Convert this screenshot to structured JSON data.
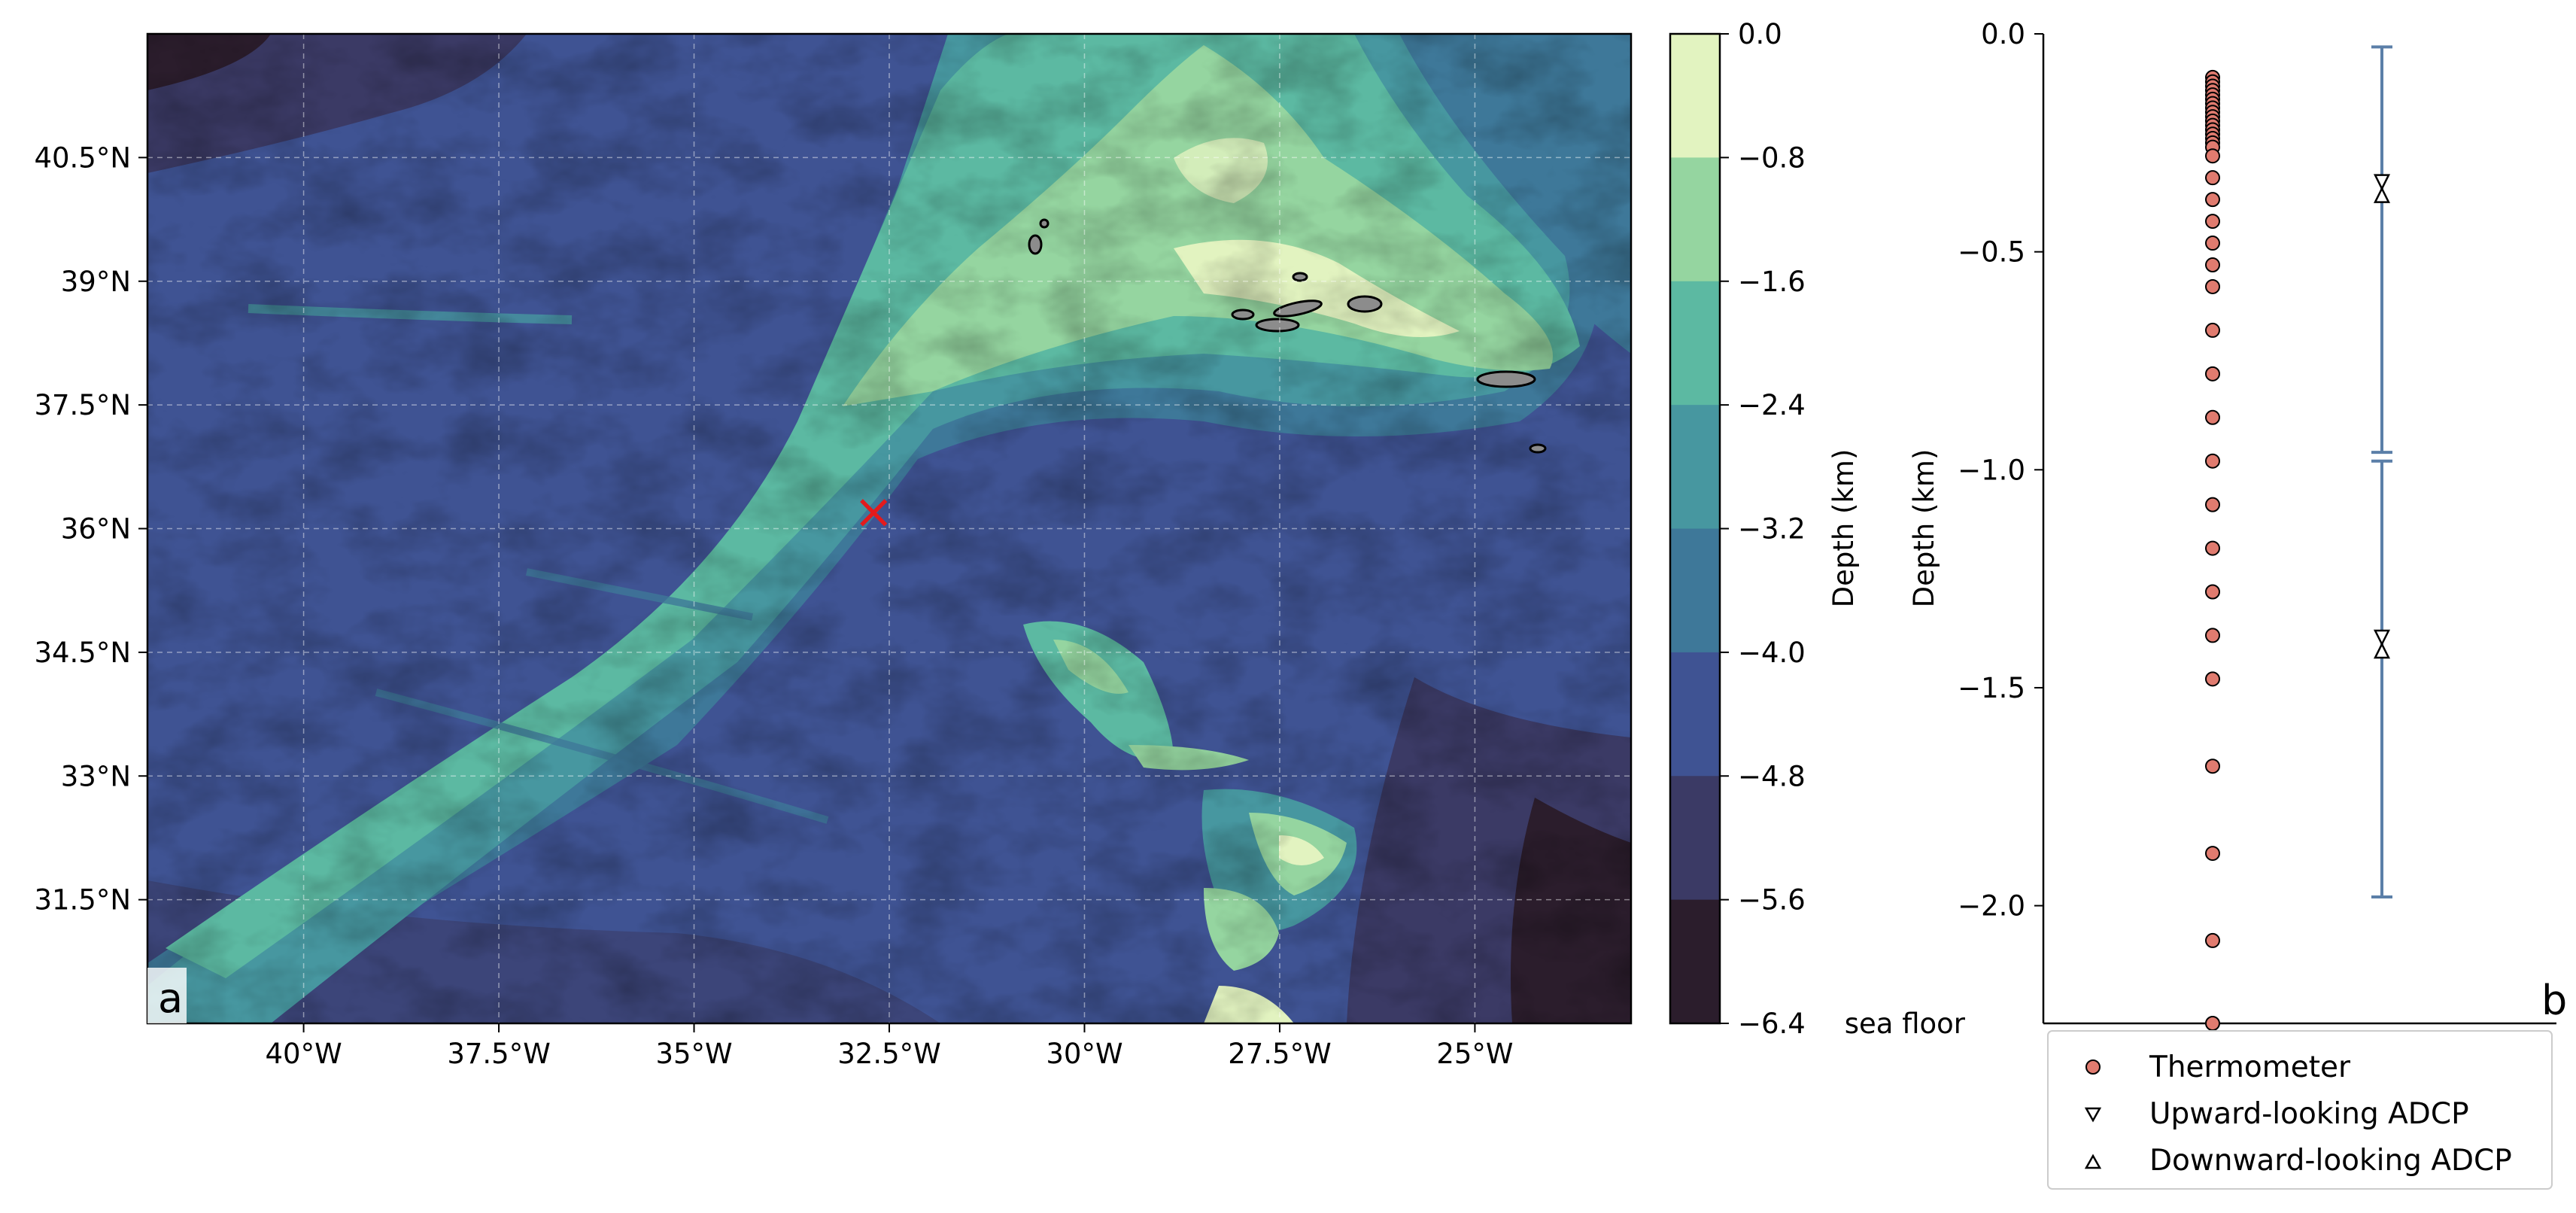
{
  "chart_data": [
    {
      "panel": "a",
      "type": "heatmap",
      "title": "",
      "x_ticks": [
        "40°W",
        "37.5°W",
        "35°W",
        "32.5°W",
        "30°W",
        "27.5°W",
        "25°W"
      ],
      "x_tick_values": [
        -40,
        -37.5,
        -35,
        -32.5,
        -30,
        -27.5,
        -25
      ],
      "y_ticks": [
        "40.5°N",
        "39°N",
        "37.5°N",
        "36°N",
        "34.5°N",
        "33°N",
        "31.5°N"
      ],
      "y_tick_values": [
        40.5,
        39,
        37.5,
        36,
        34.5,
        33,
        31.5
      ],
      "xlim": [
        -42,
        -23
      ],
      "ylim": [
        30,
        42
      ],
      "grid": true,
      "marker": {
        "lon": -32.7,
        "lat": 36.2,
        "symbol": "×",
        "color": "#e41a1c"
      },
      "colorbar": {
        "label": "Depth (km)",
        "levels": [
          0.0,
          -0.8,
          -1.6,
          -2.4,
          -3.2,
          -4.0,
          -4.8,
          -5.6,
          -6.4
        ],
        "tick_labels": [
          "0.0",
          "−0.8",
          "−1.6",
          "−2.4",
          "−3.2",
          "−4.0",
          "−4.8",
          "−5.6",
          "−6.4"
        ],
        "colors": [
          "#e2f3c0",
          "#95d5a0",
          "#5cb9a2",
          "#4797a0",
          "#3e7899",
          "#3f5393",
          "#3b3a65",
          "#2b1d2c"
        ]
      }
    },
    {
      "panel": "b",
      "type": "scatter",
      "ylabel": "Depth (km)",
      "ylim": [
        -2.27,
        0
      ],
      "y_ticks": [
        "0.0",
        "−0.5",
        "−1.0",
        "−1.5",
        "−2.0"
      ],
      "y_tick_values": [
        0,
        -0.5,
        -1.0,
        -1.5,
        -2.0
      ],
      "seafloor_label": "sea floor",
      "thermometers": {
        "name": "Thermometer",
        "color": "#e07b6f",
        "depths": [
          -0.1,
          -0.11,
          -0.12,
          -0.13,
          -0.14,
          -0.15,
          -0.16,
          -0.17,
          -0.18,
          -0.19,
          -0.2,
          -0.21,
          -0.22,
          -0.23,
          -0.24,
          -0.25,
          -0.26,
          -0.28,
          -0.33,
          -0.38,
          -0.43,
          -0.48,
          -0.53,
          -0.58,
          -0.68,
          -0.78,
          -0.88,
          -0.98,
          -1.08,
          -1.18,
          -1.28,
          -1.38,
          -1.48,
          -1.68,
          -1.88,
          -2.08,
          -2.27
        ]
      },
      "adcp_ranges": [
        {
          "upward_depth": -0.355,
          "top": -0.03,
          "bottom": -0.96
        },
        {
          "downward_depth": -1.4,
          "top": -0.98,
          "bottom": -1.98
        }
      ],
      "adcp_color": "#5b7fa8",
      "legend": {
        "placement": "bottom",
        "entries": [
          "Thermometer",
          "Upward-looking ADCP",
          "Downward-looking ADCP"
        ]
      }
    }
  ]
}
